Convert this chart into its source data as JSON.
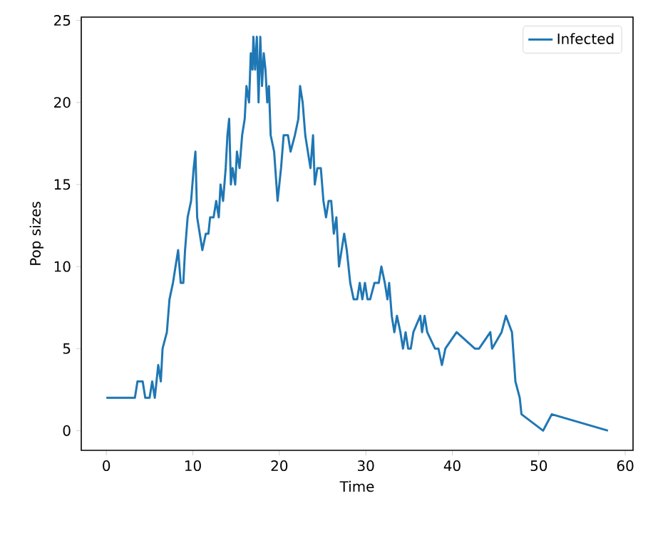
{
  "chart_data": {
    "type": "line",
    "xlabel": "Time",
    "ylabel": "Pop sizes",
    "legend": "top right",
    "marker": "none",
    "line_style": "solid",
    "grid": false,
    "xlim": [
      -2.9,
      60.9
    ],
    "ylim": [
      -1.2,
      25.2
    ],
    "xticks": [
      0,
      10,
      20,
      30,
      40,
      50,
      60
    ],
    "yticks": [
      0,
      5,
      10,
      15,
      20,
      25
    ],
    "x": [
      0,
      3.3,
      3.6,
      4.2,
      4.5,
      5.0,
      5.3,
      5.6,
      6.0,
      6.3,
      6.5,
      7,
      7.3,
      7.7,
      8,
      8.3,
      8.6,
      8.9,
      9.1,
      9.4,
      9.8,
      10.1,
      10.3,
      10.5,
      10.8,
      11.1,
      11.5,
      11.8,
      12,
      12.4,
      12.7,
      13,
      13.2,
      13.5,
      13.8,
      14,
      14.2,
      14.4,
      14.6,
      14.9,
      15.1,
      15.4,
      15.7,
      16,
      16.2,
      16.5,
      16.7,
      16.9,
      17,
      17.2,
      17.4,
      17.6,
      17.8,
      18,
      18.2,
      18.4,
      18.6,
      18.8,
      19,
      19.4,
      19.8,
      20.2,
      20.5,
      21,
      21.3,
      21.8,
      22.2,
      22.4,
      22.7,
      23,
      23.3,
      23.6,
      23.9,
      24.1,
      24.4,
      24.8,
      25.1,
      25.4,
      25.7,
      26,
      26.3,
      26.6,
      26.9,
      27.2,
      27.5,
      27.8,
      28.2,
      28.6,
      29,
      29.3,
      29.6,
      29.9,
      30.2,
      30.5,
      31,
      31.5,
      31.8,
      32.2,
      32.5,
      32.7,
      33,
      33.3,
      33.6,
      34,
      34.3,
      34.6,
      34.9,
      35.2,
      35.5,
      36.3,
      36.5,
      36.8,
      37.1,
      38,
      38.4,
      38.8,
      39.2,
      40.5,
      42.6,
      43.1,
      44.4,
      44.6,
      45.7,
      46.2,
      46.9,
      47.3,
      47.8,
      48,
      50.5,
      51.5,
      58
    ],
    "series": [
      {
        "name": "Infected",
        "color": "#1f77b4",
        "values": [
          2,
          2,
          3,
          3,
          2,
          2,
          3,
          2,
          4,
          3,
          5,
          6,
          8,
          9,
          10,
          11,
          9,
          9,
          11,
          13,
          14,
          16,
          17,
          13,
          12,
          11,
          12,
          12,
          13,
          13,
          14,
          13,
          15,
          14,
          16,
          18,
          19,
          15,
          16,
          15,
          17,
          16,
          18,
          19,
          21,
          20,
          23,
          22,
          24,
          22,
          24,
          20,
          24,
          21,
          23,
          22,
          20,
          21,
          18,
          17,
          14,
          16,
          18,
          18,
          17,
          18,
          19,
          21,
          20,
          18,
          17,
          16,
          18,
          15,
          16,
          16,
          14,
          13,
          14,
          14,
          12,
          13,
          10,
          11,
          12,
          11,
          9,
          8,
          8,
          9,
          8,
          9,
          8,
          8,
          9,
          9,
          10,
          9,
          8,
          9,
          7,
          6,
          7,
          6,
          5,
          6,
          5,
          5,
          6,
          7,
          6,
          7,
          6,
          5,
          5,
          4,
          5,
          6,
          5,
          5,
          6,
          5,
          6,
          7,
          6,
          3,
          2,
          1,
          0,
          1,
          0
        ]
      }
    ]
  }
}
